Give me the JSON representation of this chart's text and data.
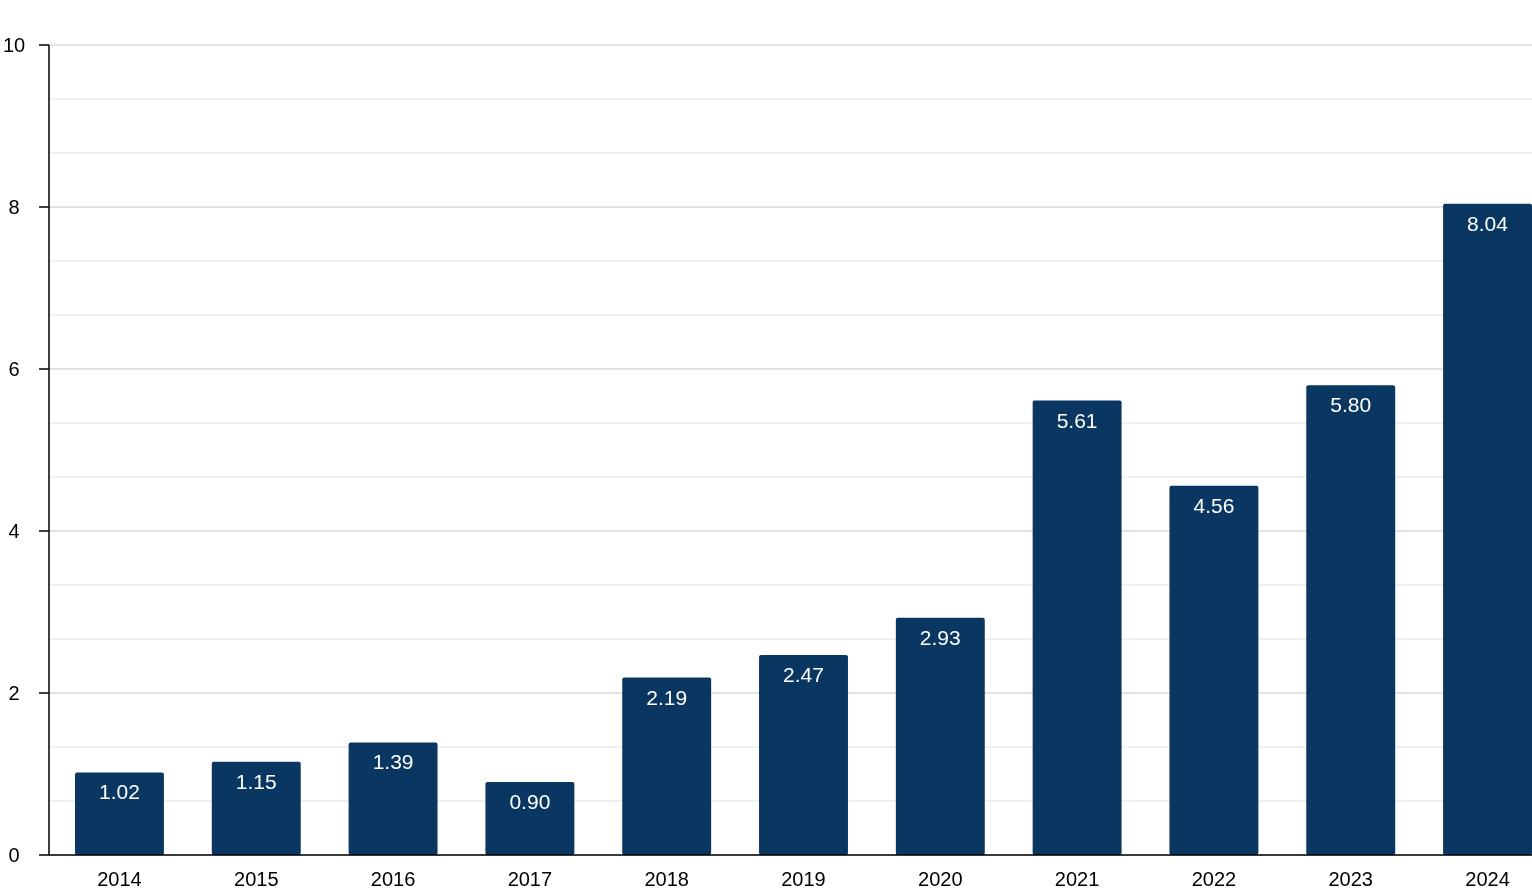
{
  "chart_data": {
    "type": "bar",
    "categories": [
      "2014",
      "2015",
      "2016",
      "2017",
      "2018",
      "2019",
      "2020",
      "2021",
      "2022",
      "2023",
      "2024"
    ],
    "values": [
      1.02,
      1.15,
      1.39,
      0.9,
      2.19,
      2.47,
      2.93,
      5.61,
      4.56,
      5.8,
      8.04
    ],
    "value_labels": [
      "1.02",
      "1.15",
      "1.39",
      "0.90",
      "2.19",
      "2.47",
      "2.93",
      "5.61",
      "4.56",
      "5.80",
      "8.04"
    ],
    "color": "#0a3761",
    "ylim": [
      0,
      10
    ],
    "yticks": [
      0,
      {
        "value": 0.6667,
        "label": null
      },
      {
        "value": 1.3333,
        "label": null
      },
      2,
      {
        "value": 2.6667,
        "label": null
      },
      {
        "value": 3.3333,
        "label": null
      },
      4,
      {
        "value": 4.6667,
        "label": null
      },
      {
        "value": 5.3333,
        "label": null
      },
      6,
      {
        "value": 6.6667,
        "label": null
      },
      {
        "value": 7.3333,
        "label": null
      },
      8,
      {
        "value": 8.6667,
        "label": null
      },
      {
        "value": 9.3333,
        "label": null
      },
      10
    ],
    "grid": true
  }
}
